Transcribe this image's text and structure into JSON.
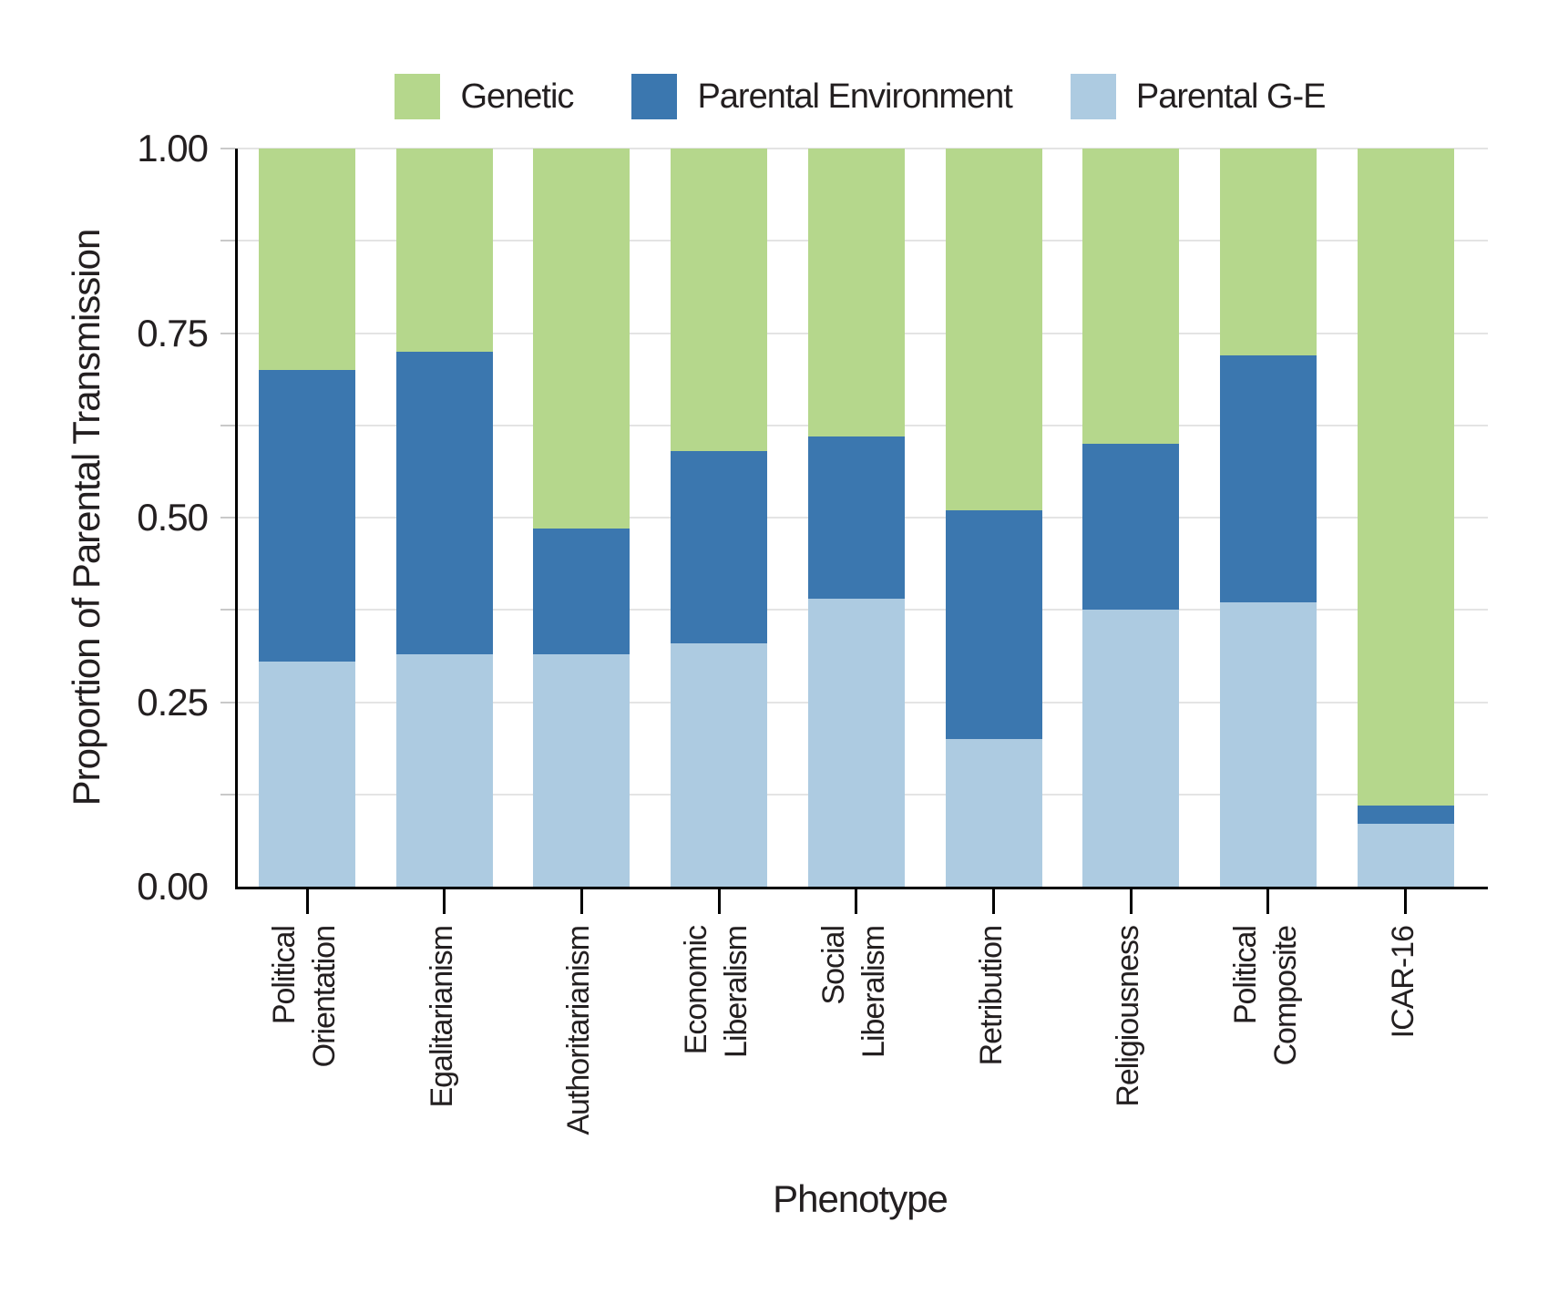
{
  "chart_data": {
    "type": "bar",
    "stacked": true,
    "title": "",
    "xlabel": "Phenotype",
    "ylabel": "Proportion of Parental Transmission",
    "ylim": [
      0,
      1
    ],
    "y_major_ticks": [
      0.0,
      0.25,
      0.5,
      0.75,
      1.0
    ],
    "y_tick_labels": [
      "0.00",
      "0.25",
      "0.50",
      "0.75",
      "1.00"
    ],
    "y_minor_step": 0.125,
    "grid": true,
    "grid_color": "#e4e4e4",
    "axis_color": "#000000",
    "text_color": "#231f20",
    "legend_position": "top",
    "categories": [
      "Political Orientation",
      "Egalitarianism",
      "Authoritarianism",
      "Economic Liberalism",
      "Social Liberalism",
      "Retribution",
      "Religiousness",
      "Political Composite",
      "ICAR-16"
    ],
    "category_label_lines": [
      [
        "Political",
        "Orientation"
      ],
      [
        "Egalitarianism"
      ],
      [
        "Authoritarianism"
      ],
      [
        "Economic",
        "Liberalism"
      ],
      [
        "Social",
        "Liberalism"
      ],
      [
        "Retribution"
      ],
      [
        "Religiousness"
      ],
      [
        "Political",
        "Composite"
      ],
      [
        "ICAR-16"
      ]
    ],
    "series": [
      {
        "name": "Genetic",
        "color": "#b5d78c",
        "values": [
          0.3,
          0.275,
          0.515,
          0.41,
          0.39,
          0.49,
          0.4,
          0.28,
          0.89
        ]
      },
      {
        "name": "Parental Environment",
        "color": "#3b77af",
        "values": [
          0.395,
          0.41,
          0.17,
          0.26,
          0.22,
          0.31,
          0.225,
          0.335,
          0.025
        ]
      },
      {
        "name": "Parental G-E",
        "color": "#adcbe1",
        "values": [
          0.305,
          0.315,
          0.315,
          0.33,
          0.39,
          0.2,
          0.375,
          0.385,
          0.085
        ]
      }
    ],
    "stack_order_bottom_to_top": [
      "Parental G-E",
      "Parental Environment",
      "Genetic"
    ]
  },
  "legend": {
    "items": [
      {
        "label": "Genetic",
        "color": "#b5d78c"
      },
      {
        "label": "Parental Environment",
        "color": "#3b77af"
      },
      {
        "label": "Parental G-E",
        "color": "#adcbe1"
      }
    ]
  },
  "axes": {
    "x_title": "Phenotype",
    "y_title": "Proportion of Parental Transmission"
  }
}
